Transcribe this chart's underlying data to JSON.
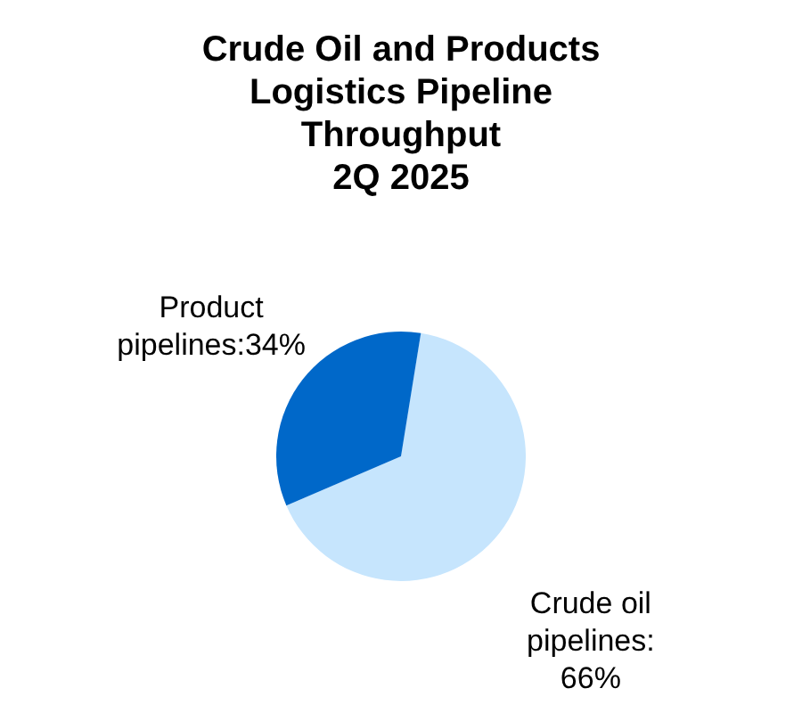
{
  "chart_data": {
    "type": "pie",
    "title": "Crude Oil and Products\nLogistics Pipeline\nThroughput\n2Q 2025",
    "categories": [
      "Crude oil pipelines",
      "Product pipelines"
    ],
    "values": [
      66,
      34
    ],
    "colors": [
      "#c6e5fd",
      "#0068c9"
    ],
    "value_labels": [
      ":\n66%",
      ":34%"
    ]
  }
}
